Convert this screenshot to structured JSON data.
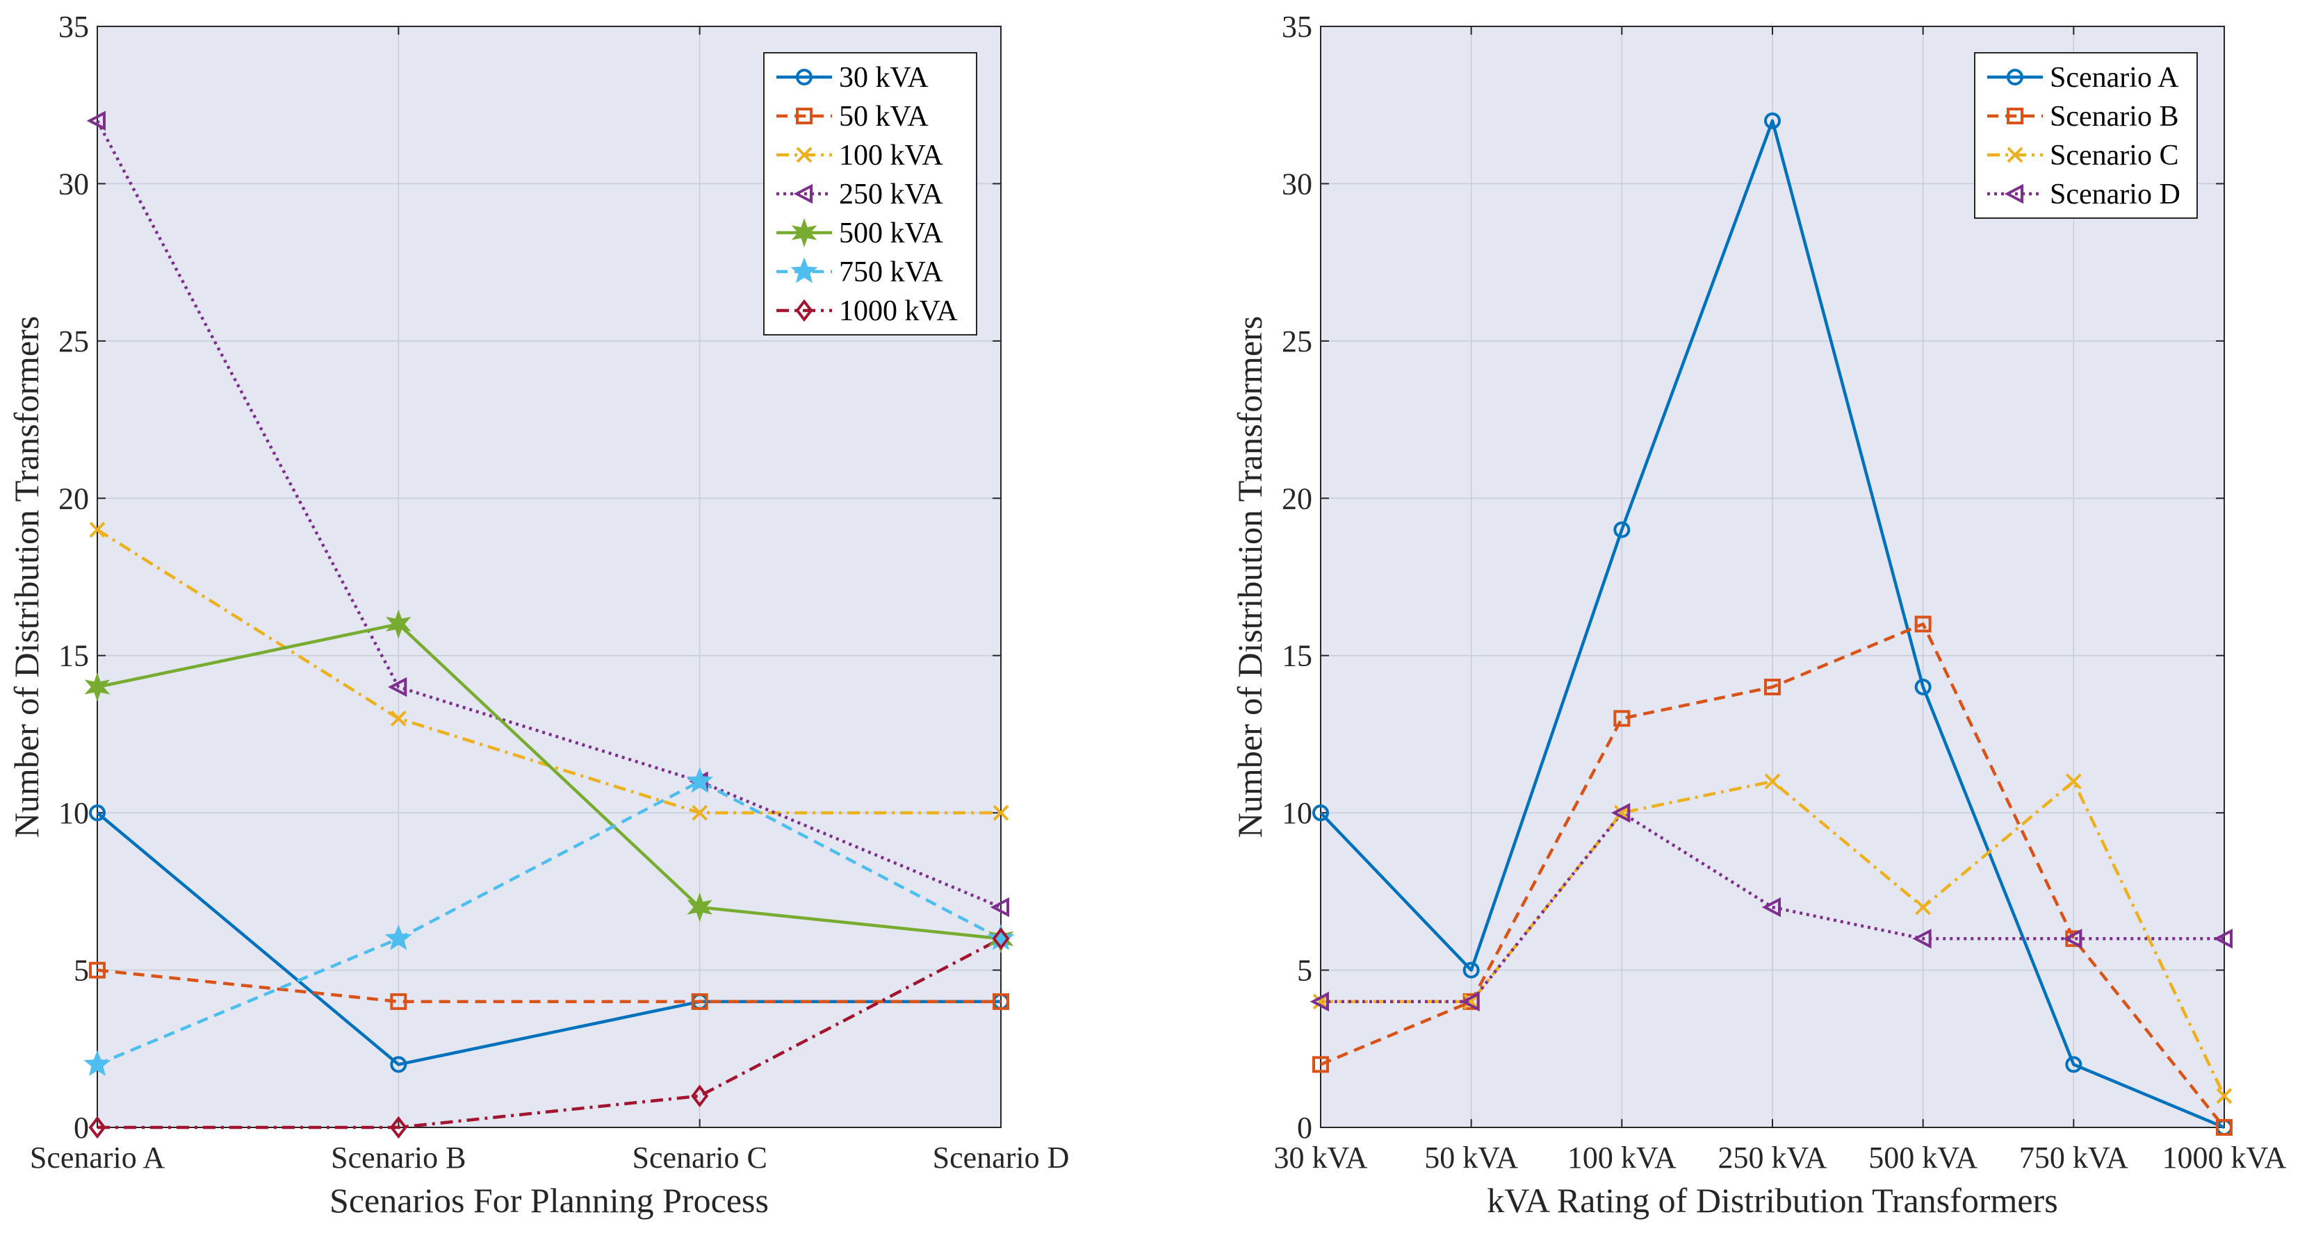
{
  "colors": {
    "plot_bg": "#e4e7f2",
    "grid": "#c8ccd8",
    "axis": "#262626",
    "blue": "#0072bd",
    "orange": "#d95319",
    "yellow": "#edb120",
    "purple": "#7e2f8e",
    "green": "#77ac30",
    "cyan": "#4dbeee",
    "darkred": "#a2142f"
  },
  "chart_data": [
    {
      "type": "line",
      "title": "",
      "xlabel": "Scenarios For Planning Process",
      "ylabel": "Number of Distribution Transformers",
      "categories": [
        "Scenario A",
        "Scenario B",
        "Scenario C",
        "Scenario D"
      ],
      "ylim": [
        0,
        35
      ],
      "yticks": [
        0,
        5,
        10,
        15,
        20,
        25,
        30,
        35
      ],
      "grid": true,
      "legend_position": "top-right",
      "series": [
        {
          "name": "30 kVA",
          "values": [
            10,
            2,
            4,
            4
          ],
          "color": "#0072bd",
          "dash": "solid",
          "marker": "circle"
        },
        {
          "name": "50 kVA",
          "values": [
            5,
            4,
            4,
            4
          ],
          "color": "#d95319",
          "dash": "dashed",
          "marker": "square"
        },
        {
          "name": "100 kVA",
          "values": [
            19,
            13,
            10,
            10
          ],
          "color": "#edb120",
          "dash": "dashdot",
          "marker": "x"
        },
        {
          "name": "250 kVA",
          "values": [
            32,
            14,
            11,
            7
          ],
          "color": "#7e2f8e",
          "dash": "dotted",
          "marker": "triangle-left"
        },
        {
          "name": "500 kVA",
          "values": [
            14,
            16,
            7,
            6
          ],
          "color": "#77ac30",
          "dash": "solid",
          "marker": "hexagram"
        },
        {
          "name": "750 kVA",
          "values": [
            2,
            6,
            11,
            6
          ],
          "color": "#4dbeee",
          "dash": "dashed",
          "marker": "pentagram"
        },
        {
          "name": "1000 kVA",
          "values": [
            0,
            0,
            1,
            6
          ],
          "color": "#a2142f",
          "dash": "dashdot",
          "marker": "diamond"
        }
      ]
    },
    {
      "type": "line",
      "title": "",
      "xlabel": "kVA Rating of Distribution Transformers",
      "ylabel": "Number of Distribution Transformers",
      "categories": [
        "30 kVA",
        "50 kVA",
        "100 kVA",
        "250 kVA",
        "500 kVA",
        "750 kVA",
        "1000 kVA"
      ],
      "ylim": [
        0,
        35
      ],
      "yticks": [
        0,
        5,
        10,
        15,
        20,
        25,
        30,
        35
      ],
      "grid": true,
      "legend_position": "top-right",
      "series": [
        {
          "name": "Scenario A",
          "values": [
            10,
            5,
            19,
            32,
            14,
            2,
            0
          ],
          "color": "#0072bd",
          "dash": "solid",
          "marker": "circle"
        },
        {
          "name": "Scenario B",
          "values": [
            2,
            4,
            13,
            14,
            16,
            6,
            0
          ],
          "color": "#d95319",
          "dash": "dashed",
          "marker": "square"
        },
        {
          "name": "Scenario C",
          "values": [
            4,
            4,
            10,
            11,
            7,
            11,
            1
          ],
          "color": "#edb120",
          "dash": "dashdot",
          "marker": "x"
        },
        {
          "name": "Scenario D",
          "values": [
            4,
            4,
            10,
            7,
            6,
            6,
            6
          ],
          "color": "#7e2f8e",
          "dash": "dotted",
          "marker": "triangle-left"
        }
      ]
    }
  ]
}
